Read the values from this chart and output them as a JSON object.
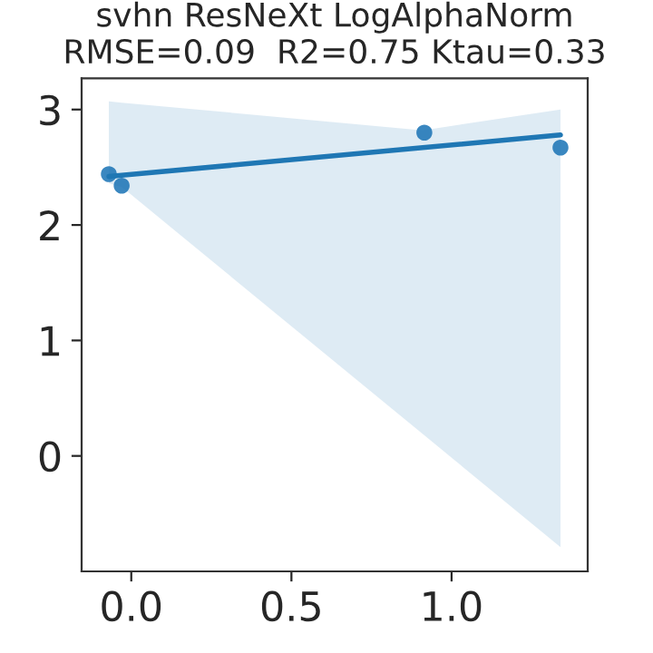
{
  "chart_data": {
    "type": "scatter",
    "title": "svhn ResNeXt LogAlphaNorm\nRMSE=0.09  R2=0.75 Ktau=0.33",
    "series": [
      {
        "marker": "circle",
        "color": "#3a87c0",
        "x": [
          -0.07,
          -0.03,
          0.915,
          1.34
        ],
        "values": [
          2.44,
          2.34,
          2.8,
          2.67
        ]
      },
      {
        "type": "line",
        "color": "#1f77b4",
        "x": [
          -0.07,
          -0.03,
          0.91,
          1.34
        ],
        "values": [
          2.42,
          2.43,
          2.67,
          2.78
        ],
        "lower": [
          2.36,
          2.33,
          0.19,
          -0.79
        ],
        "upper": [
          3.07,
          3.06,
          2.82,
          3.0
        ]
      }
    ],
    "xlim": [
      -0.155,
      1.425
    ],
    "ylim": [
      -1.0,
      3.27
    ],
    "xticks": [
      {
        "value": 0,
        "label": "0.0"
      },
      0.5,
      {
        "value": 1,
        "label": "1.0"
      }
    ],
    "yticks": [
      0,
      1,
      2,
      3
    ],
    "grid": false
  }
}
